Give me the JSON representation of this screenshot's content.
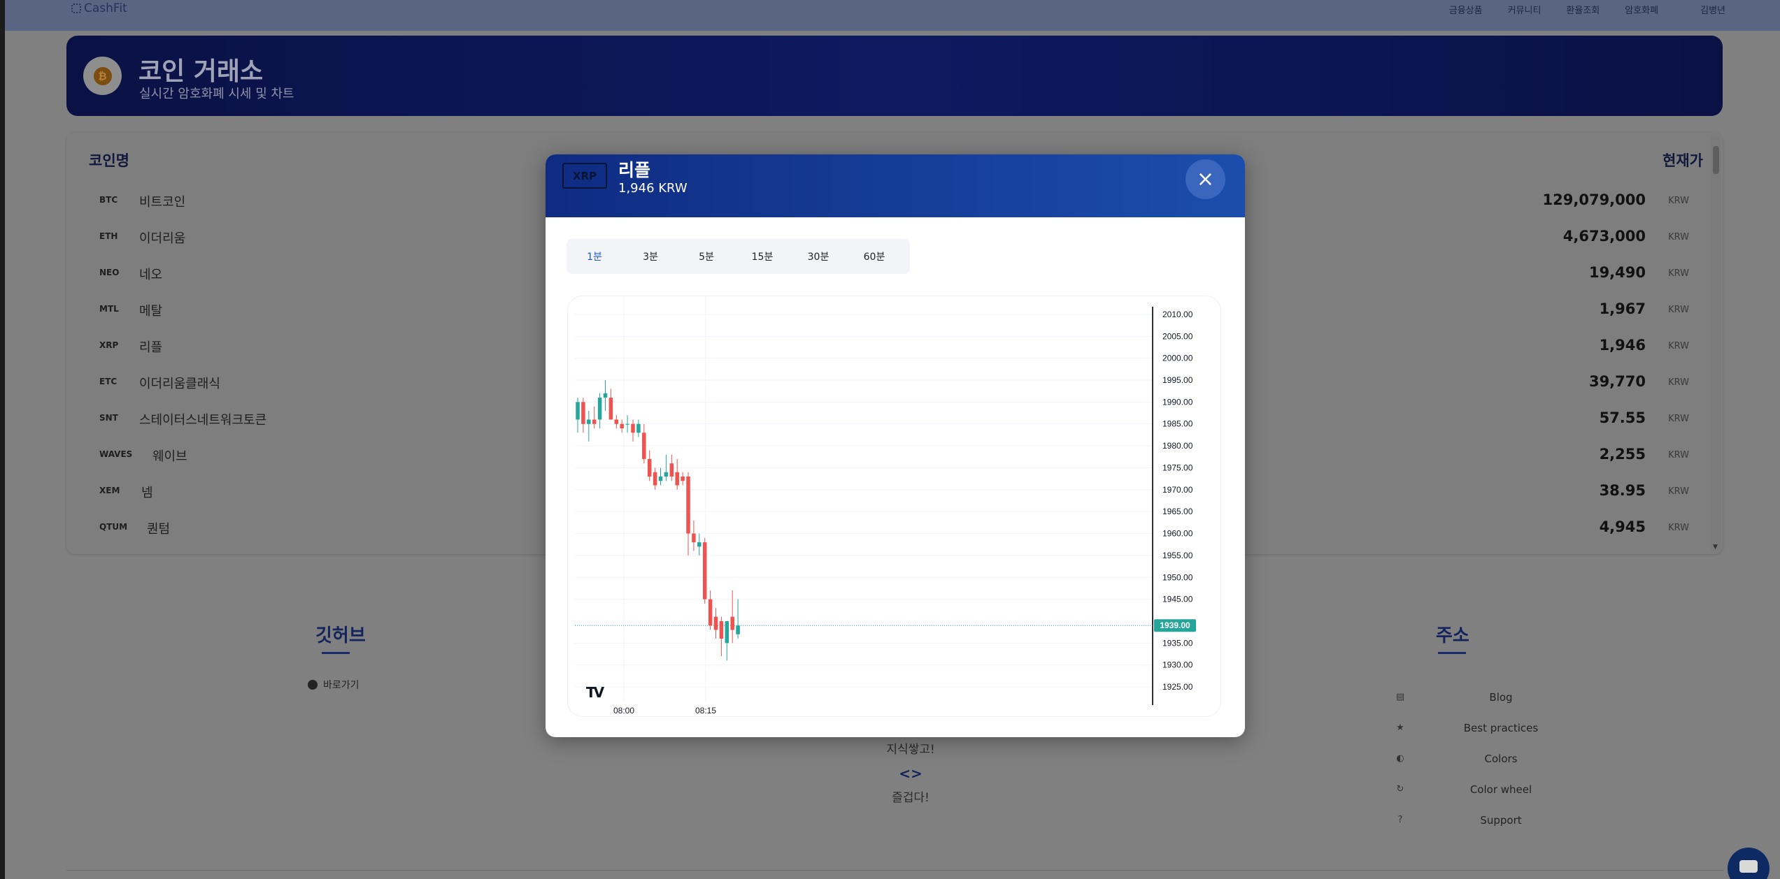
{
  "nav": {
    "brand": "CashFit",
    "items": [
      "금융상품",
      "커뮤니티",
      "환율조회",
      "암호화폐"
    ],
    "user": "김병년"
  },
  "hero": {
    "coin_symbol": "₿",
    "title": "코인 거래소",
    "subtitle": "실시간 암호화폐 시세 및 차트"
  },
  "table": {
    "col_name": "코인명",
    "col_price": "현재가",
    "rows": [
      {
        "symbol": "BTC",
        "name": "비트코인",
        "price": "129,079,000",
        "unit": "KRW"
      },
      {
        "symbol": "ETH",
        "name": "이더리움",
        "price": "4,673,000",
        "unit": "KRW"
      },
      {
        "symbol": "NEO",
        "name": "네오",
        "price": "19,490",
        "unit": "KRW"
      },
      {
        "symbol": "MTL",
        "name": "메탈",
        "price": "1,967",
        "unit": "KRW"
      },
      {
        "symbol": "XRP",
        "name": "리플",
        "price": "1,946",
        "unit": "KRW"
      },
      {
        "symbol": "ETC",
        "name": "이더리움클래식",
        "price": "39,770",
        "unit": "KRW"
      },
      {
        "symbol": "SNT",
        "name": "스테이터스네트워크토큰",
        "price": "57.55",
        "unit": "KRW"
      },
      {
        "symbol": "WAVES",
        "name": "웨이브",
        "price": "2,255",
        "unit": "KRW"
      },
      {
        "symbol": "XEM",
        "name": "넴",
        "price": "38.95",
        "unit": "KRW"
      },
      {
        "symbol": "QTUM",
        "name": "퀀텀",
        "price": "4,945",
        "unit": "KRW"
      }
    ]
  },
  "footer": {
    "github_title": "깃허브",
    "github_link": "바로가기",
    "slogan1": "지식쌓고!",
    "code_glyph": "<>",
    "slogan2": "즐겁다!",
    "address_title": "주소",
    "links": [
      {
        "icon": "bookmark-icon",
        "label": "Blog"
      },
      {
        "icon": "star-icon",
        "label": "Best practices"
      },
      {
        "icon": "palette-icon",
        "label": "Colors"
      },
      {
        "icon": "refresh-icon",
        "label": "Color wheel"
      },
      {
        "icon": "help-icon",
        "label": "Support"
      }
    ]
  },
  "modal": {
    "symbol": "XRP",
    "name": "리플",
    "price": "1,946 KRW",
    "close_glyph": "×",
    "intervals": [
      "1분",
      "3분",
      "5분",
      "15분",
      "30분",
      "60분"
    ],
    "active_interval": "1분",
    "tv_logo": "TV"
  },
  "chart_data": {
    "type": "candlestick",
    "y_ticks": [
      "2010.00",
      "2005.00",
      "2000.00",
      "1995.00",
      "1990.00",
      "1985.00",
      "1980.00",
      "1975.00",
      "1970.00",
      "1965.00",
      "1960.00",
      "1955.00",
      "1950.00",
      "1945.00",
      "1935.00",
      "1930.00",
      "1925.00"
    ],
    "x_ticks": [
      "08:00",
      "08:15"
    ],
    "last_price_label": "1939.00",
    "last_price": 1939,
    "ylim": [
      1921.5,
      2013.5
    ],
    "up_color": "#26a69a",
    "down_color": "#ef5350",
    "candles": [
      {
        "o": 1986,
        "h": 1991,
        "l": 1983,
        "c": 1990
      },
      {
        "o": 1990,
        "h": 1991,
        "l": 1983,
        "c": 1985
      },
      {
        "o": 1985,
        "h": 1988,
        "l": 1981,
        "c": 1986
      },
      {
        "o": 1986,
        "h": 1989,
        "l": 1984,
        "c": 1985
      },
      {
        "o": 1986,
        "h": 1992,
        "l": 1984,
        "c": 1991
      },
      {
        "o": 1991,
        "h": 1995,
        "l": 1988,
        "c": 1992
      },
      {
        "o": 1991,
        "h": 1993,
        "l": 1986,
        "c": 1986
      },
      {
        "o": 1986,
        "h": 1987,
        "l": 1984,
        "c": 1985
      },
      {
        "o": 1985,
        "h": 1986,
        "l": 1983,
        "c": 1984
      },
      {
        "o": 1985,
        "h": 1987,
        "l": 1983,
        "c": 1985
      },
      {
        "o": 1985,
        "h": 1986,
        "l": 1981,
        "c": 1983
      },
      {
        "o": 1983,
        "h": 1986,
        "l": 1982,
        "c": 1985
      },
      {
        "o": 1983,
        "h": 1985,
        "l": 1976,
        "c": 1977
      },
      {
        "o": 1977,
        "h": 1979,
        "l": 1972,
        "c": 1973
      },
      {
        "o": 1974,
        "h": 1975,
        "l": 1970,
        "c": 1971
      },
      {
        "o": 1972,
        "h": 1975,
        "l": 1971,
        "c": 1973
      },
      {
        "o": 1973,
        "h": 1978,
        "l": 1972,
        "c": 1974
      },
      {
        "o": 1976,
        "h": 1978,
        "l": 1972,
        "c": 1973
      },
      {
        "o": 1974,
        "h": 1977,
        "l": 1970,
        "c": 1971
      },
      {
        "o": 1973,
        "h": 1974,
        "l": 1971,
        "c": 1972
      },
      {
        "o": 1973,
        "h": 1974,
        "l": 1955,
        "c": 1960
      },
      {
        "o": 1960,
        "h": 1963,
        "l": 1956,
        "c": 1958
      },
      {
        "o": 1957,
        "h": 1960,
        "l": 1955,
        "c": 1958
      },
      {
        "o": 1958,
        "h": 1959,
        "l": 1944,
        "c": 1945
      },
      {
        "o": 1945,
        "h": 1947,
        "l": 1938,
        "c": 1939
      },
      {
        "o": 1941,
        "h": 1943,
        "l": 1936,
        "c": 1938
      },
      {
        "o": 1940,
        "h": 1941,
        "l": 1932,
        "c": 1936
      },
      {
        "o": 1935,
        "h": 1940,
        "l": 1931,
        "c": 1940
      },
      {
        "o": 1941,
        "h": 1947,
        "l": 1935,
        "c": 1938
      },
      {
        "o": 1937,
        "h": 1945,
        "l": 1936,
        "c": 1939
      }
    ]
  }
}
